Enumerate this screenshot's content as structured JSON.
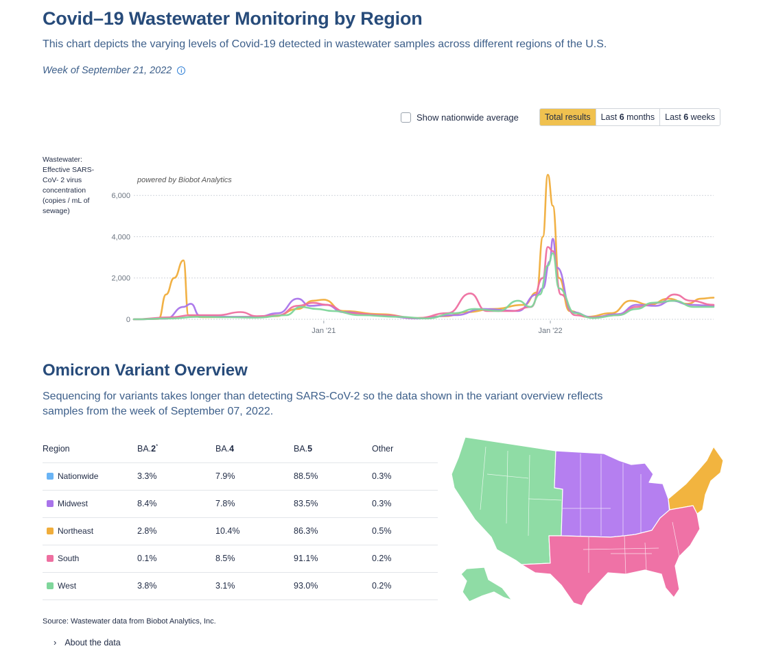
{
  "header": {
    "title": "Covid–19 Wastewater Monitoring by Region",
    "subtitle": "This chart depicts the varying levels of Covid-19 detected in wastewater samples across different regions of the U.S.",
    "week": "Week of September 21, 2022",
    "info_icon": "info-icon"
  },
  "controls": {
    "checkbox_label": "Show nationwide average",
    "checkbox_checked": false,
    "range_buttons": [
      {
        "label_pre": "Total results",
        "label_bold": "",
        "label_post": "",
        "active": true
      },
      {
        "label_pre": "Last ",
        "label_bold": "6",
        "label_post": " months",
        "active": false
      },
      {
        "label_pre": "Last ",
        "label_bold": "6",
        "label_post": " weeks",
        "active": false
      }
    ]
  },
  "chart_data": {
    "type": "line",
    "ylabel": "Wastewater: Effective SARS-CoV- 2 virus concentration (copies / mL of sewage)",
    "watermark": "powered by Biobot Analytics",
    "x_ticks": [
      "Jan '21",
      "Jan '22"
    ],
    "y_ticks": [
      "0",
      "2,000",
      "4,000",
      "6,000"
    ],
    "ylim": [
      0,
      7500
    ],
    "xlim": [
      "2020-03-01",
      "2022-09-21"
    ],
    "grid": true,
    "series": [
      {
        "color": "#f0ad3b",
        "points": [
          [
            "2020-03-01",
            0
          ],
          [
            "2020-04-10",
            20
          ],
          [
            "2020-04-22",
            1200
          ],
          [
            "2020-05-05",
            2000
          ],
          [
            "2020-05-20",
            2850
          ],
          [
            "2020-05-28",
            200
          ],
          [
            "2020-06-20",
            100
          ],
          [
            "2020-08-01",
            110
          ],
          [
            "2020-09-01",
            120
          ],
          [
            "2020-10-15",
            150
          ],
          [
            "2020-11-20",
            500
          ],
          [
            "2020-12-15",
            900
          ],
          [
            "2021-01-01",
            950
          ],
          [
            "2021-02-01",
            400
          ],
          [
            "2021-04-01",
            250
          ],
          [
            "2021-06-01",
            60
          ],
          [
            "2021-07-15",
            150
          ],
          [
            "2021-08-20",
            350
          ],
          [
            "2021-10-01",
            500
          ],
          [
            "2021-11-20",
            700
          ],
          [
            "2021-12-10",
            1300
          ],
          [
            "2021-12-20",
            4000
          ],
          [
            "2021-12-28",
            7000
          ],
          [
            "2022-01-05",
            5500
          ],
          [
            "2022-01-15",
            2000
          ],
          [
            "2022-02-01",
            400
          ],
          [
            "2022-03-01",
            120
          ],
          [
            "2022-04-10",
            300
          ],
          [
            "2022-05-10",
            900
          ],
          [
            "2022-06-10",
            700
          ],
          [
            "2022-07-10",
            1000
          ],
          [
            "2022-08-10",
            750
          ],
          [
            "2022-09-01",
            1000
          ],
          [
            "2022-09-21",
            1050
          ]
        ]
      },
      {
        "color": "#a974ea",
        "points": [
          [
            "2020-03-01",
            0
          ],
          [
            "2020-04-22",
            30
          ],
          [
            "2020-05-20",
            600
          ],
          [
            "2020-06-01",
            750
          ],
          [
            "2020-06-15",
            180
          ],
          [
            "2020-08-01",
            120
          ],
          [
            "2020-09-15",
            110
          ],
          [
            "2020-10-20",
            300
          ],
          [
            "2020-11-20",
            1000
          ],
          [
            "2020-12-10",
            650
          ],
          [
            "2021-01-05",
            700
          ],
          [
            "2021-02-01",
            350
          ],
          [
            "2021-04-01",
            180
          ],
          [
            "2021-06-01",
            40
          ],
          [
            "2021-08-01",
            200
          ],
          [
            "2021-09-15",
            500
          ],
          [
            "2021-11-10",
            400
          ],
          [
            "2021-12-10",
            1200
          ],
          [
            "2021-12-20",
            1500
          ],
          [
            "2021-12-31",
            2800
          ],
          [
            "2022-01-05",
            3900
          ],
          [
            "2022-01-12",
            2500
          ],
          [
            "2022-02-05",
            350
          ],
          [
            "2022-03-10",
            100
          ],
          [
            "2022-04-20",
            250
          ],
          [
            "2022-05-20",
            700
          ],
          [
            "2022-06-20",
            650
          ],
          [
            "2022-07-15",
            900
          ],
          [
            "2022-08-15",
            700
          ],
          [
            "2022-09-21",
            650
          ]
        ]
      },
      {
        "color": "#ee6fa0",
        "points": [
          [
            "2020-03-01",
            0
          ],
          [
            "2020-05-01",
            100
          ],
          [
            "2020-06-01",
            200
          ],
          [
            "2020-07-15",
            200
          ],
          [
            "2020-08-20",
            350
          ],
          [
            "2020-09-15",
            150
          ],
          [
            "2020-10-20",
            200
          ],
          [
            "2020-11-20",
            650
          ],
          [
            "2020-12-15",
            800
          ],
          [
            "2021-01-05",
            700
          ],
          [
            "2021-02-10",
            300
          ],
          [
            "2021-04-10",
            200
          ],
          [
            "2021-06-01",
            60
          ],
          [
            "2021-07-20",
            300
          ],
          [
            "2021-08-25",
            1250
          ],
          [
            "2021-09-20",
            400
          ],
          [
            "2021-11-01",
            400
          ],
          [
            "2021-12-01",
            600
          ],
          [
            "2021-12-20",
            2000
          ],
          [
            "2021-12-28",
            3500
          ],
          [
            "2022-01-05",
            3300
          ],
          [
            "2022-01-18",
            1200
          ],
          [
            "2022-02-10",
            200
          ],
          [
            "2022-03-10",
            80
          ],
          [
            "2022-04-20",
            200
          ],
          [
            "2022-05-20",
            600
          ],
          [
            "2022-06-25",
            800
          ],
          [
            "2022-07-20",
            1200
          ],
          [
            "2022-08-15",
            900
          ],
          [
            "2022-09-21",
            700
          ]
        ]
      },
      {
        "color": "#7fd69b",
        "points": [
          [
            "2020-03-01",
            0
          ],
          [
            "2020-05-01",
            40
          ],
          [
            "2020-06-10",
            120
          ],
          [
            "2020-08-01",
            100
          ],
          [
            "2020-09-15",
            80
          ],
          [
            "2020-11-01",
            200
          ],
          [
            "2020-11-25",
            600
          ],
          [
            "2020-12-20",
            500
          ],
          [
            "2021-01-15",
            400
          ],
          [
            "2021-03-01",
            200
          ],
          [
            "2021-05-01",
            120
          ],
          [
            "2021-06-15",
            40
          ],
          [
            "2021-08-01",
            300
          ],
          [
            "2021-09-01",
            500
          ],
          [
            "2021-10-10",
            400
          ],
          [
            "2021-11-10",
            900
          ],
          [
            "2021-11-30",
            600
          ],
          [
            "2021-12-15",
            1200
          ],
          [
            "2021-12-28",
            2600
          ],
          [
            "2022-01-05",
            3200
          ],
          [
            "2022-01-15",
            1500
          ],
          [
            "2022-02-10",
            300
          ],
          [
            "2022-03-10",
            60
          ],
          [
            "2022-04-20",
            200
          ],
          [
            "2022-05-20",
            500
          ],
          [
            "2022-06-15",
            800
          ],
          [
            "2022-07-20",
            900
          ],
          [
            "2022-08-20",
            600
          ],
          [
            "2022-09-21",
            600
          ]
        ]
      }
    ]
  },
  "variant": {
    "title": "Omicron Variant Overview",
    "description": "Sequencing for variants takes longer than detecting SARS-CoV-2 so the data shown in the variant overview reflects samples from the week of September 07, 2022.",
    "columns": [
      {
        "pre": "Region",
        "bold": "",
        "sup": ""
      },
      {
        "pre": "BA.",
        "bold": "2",
        "sup": "*"
      },
      {
        "pre": "BA.",
        "bold": "4",
        "sup": ""
      },
      {
        "pre": "BA.",
        "bold": "5",
        "sup": ""
      },
      {
        "pre": "Other",
        "bold": "",
        "sup": ""
      }
    ],
    "rows": [
      {
        "region": "Nationwide",
        "color": "#6ab4f5",
        "ba2": "3.3%",
        "ba4": "7.9%",
        "ba5": "88.5%",
        "other": "0.3%"
      },
      {
        "region": "Midwest",
        "color": "#a974ea",
        "ba2": "8.4%",
        "ba4": "7.8%",
        "ba5": "83.5%",
        "other": "0.3%"
      },
      {
        "region": "Northeast",
        "color": "#f0ad3b",
        "ba2": "2.8%",
        "ba4": "10.4%",
        "ba5": "86.3%",
        "other": "0.5%"
      },
      {
        "region": "South",
        "color": "#ee6fa0",
        "ba2": "0.1%",
        "ba4": "8.5%",
        "ba5": "91.1%",
        "other": "0.2%"
      },
      {
        "region": "West",
        "color": "#7fd69b",
        "ba2": "3.8%",
        "ba4": "3.1%",
        "ba5": "93.0%",
        "other": "0.2%"
      }
    ]
  },
  "map": {
    "icon": "us-regions-map",
    "colors": {
      "west": "#8fdca5",
      "midwest": "#b57ff0",
      "northeast": "#f2b43f",
      "south": "#ef72a6"
    }
  },
  "footer": {
    "source": "Source:  Wastewater data from Biobot Analytics, Inc.",
    "about": "About the data",
    "about_icon": "chevron-right-icon"
  }
}
